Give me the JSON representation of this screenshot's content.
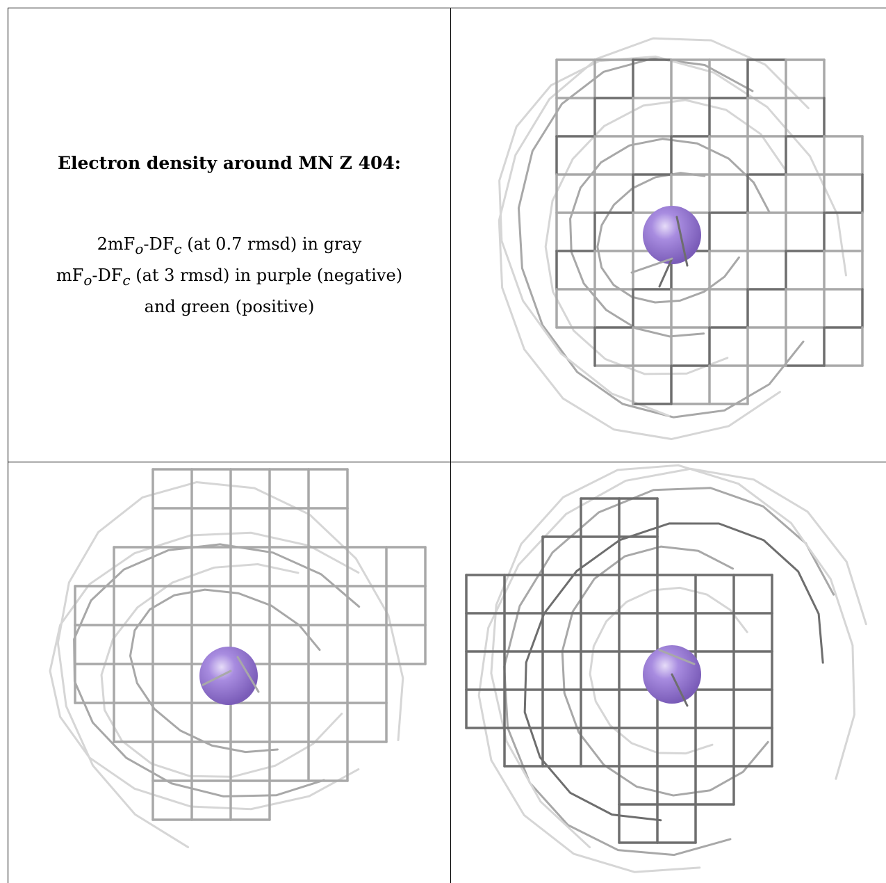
{
  "caption": {
    "title": "Electron density around MN Z 404:",
    "line1_a": "2mF",
    "line1_sub1": "o",
    "line1_b": "-DF",
    "line1_sub2": "c",
    "line1_c": " (at 0.7 rmsd) in gray",
    "line2_a": "mF",
    "line2_sub1": "o",
    "line2_b": "-DF",
    "line2_sub2": "c",
    "line2_c": " (at 3 rmsd) in purple (negative)",
    "line3": "and green (positive)"
  },
  "colors": {
    "mesh_dark": "#6e6e6e",
    "mesh_mid": "#a8a8a8",
    "mesh_light": "#d6d6d6",
    "atom": "#9b7fd6",
    "atom_highlight": "#d9ccf4",
    "border": "#000000"
  },
  "panels": [
    {
      "name": "view-top-right",
      "atom_label": "MN"
    },
    {
      "name": "view-bottom-left",
      "atom_label": "MN"
    },
    {
      "name": "view-bottom-right",
      "atom_label": "MN"
    }
  ]
}
